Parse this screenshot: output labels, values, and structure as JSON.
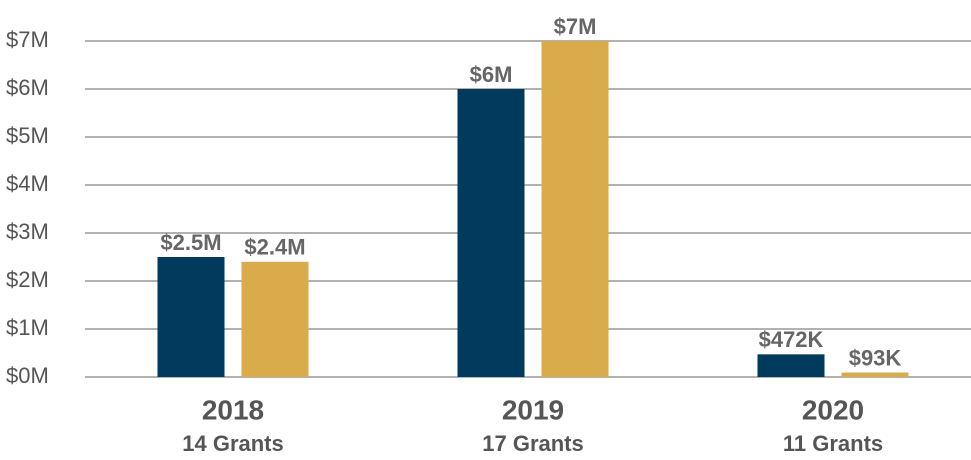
{
  "chart_data": {
    "type": "bar",
    "categories": [
      "2018",
      "2019",
      "2020"
    ],
    "category_sublabels": [
      "14 Grants",
      "17 Grants",
      "11 Grants"
    ],
    "series": [
      {
        "color": "#003a5d",
        "values": [
          2500000,
          6000000,
          472000
        ],
        "value_labels": [
          "$2.5M",
          "$6M",
          "$472K"
        ]
      },
      {
        "color": "#d9ab4b",
        "values": [
          2400000,
          7000000,
          93000
        ],
        "value_labels": [
          "$2.4M",
          "$7M",
          "$93K"
        ]
      }
    ],
    "ylim": [
      0,
      7000000
    ],
    "yticks": [
      {
        "value": 0,
        "label": "$0M"
      },
      {
        "value": 1000000,
        "label": "$1M"
      },
      {
        "value": 2000000,
        "label": "$2M"
      },
      {
        "value": 3000000,
        "label": "$3M"
      },
      {
        "value": 4000000,
        "label": "$4M"
      },
      {
        "value": 5000000,
        "label": "$5M"
      },
      {
        "value": 6000000,
        "label": "$6M"
      },
      {
        "value": 7000000,
        "label": "$7M"
      }
    ],
    "grid": true
  }
}
